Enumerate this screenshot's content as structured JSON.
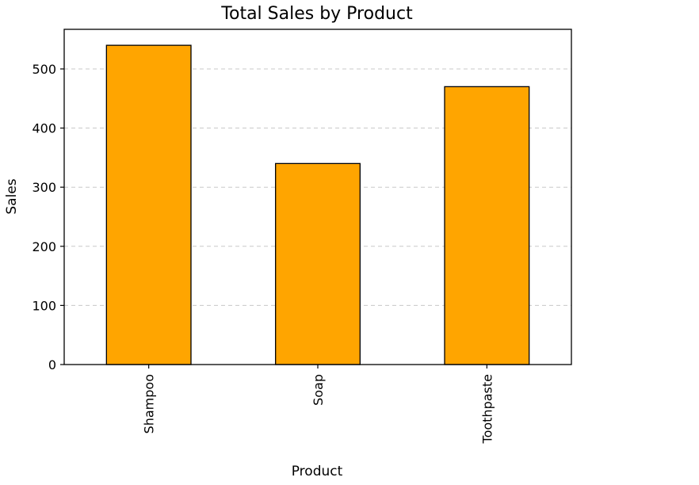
{
  "chart_data": {
    "type": "bar",
    "title": "Total Sales by Product",
    "xlabel": "Product",
    "ylabel": "Sales",
    "categories": [
      "Shampoo",
      "Soap",
      "Toothpaste"
    ],
    "values": [
      540,
      340,
      470
    ],
    "ylim": [
      0,
      567
    ],
    "yticks": [
      0,
      100,
      200,
      300,
      400,
      500
    ],
    "grid": "y-dashed",
    "bar_color": "#FFA500",
    "bar_edge_color": "#000000",
    "xtick_rotation": 90
  }
}
